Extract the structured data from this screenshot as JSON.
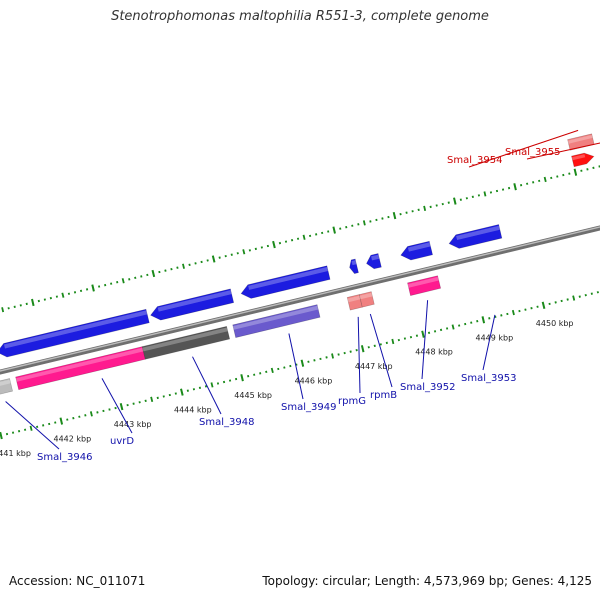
{
  "title": "Stenotrophomonas maltophilia R551-3, complete genome",
  "footer": {
    "accession": "Accession: NC_011071",
    "summary": "Topology: circular; Length: 4,573,969 bp; Genes: 4,125"
  },
  "colors": {
    "forward_cds": "#1c1ce0",
    "reverse_cds": "#ff1a8f",
    "trna_light": "#f08080",
    "trna_forward": "#ff1010",
    "trna_pseudo": "#bbbbbb",
    "dark_gene": "#555555",
    "violet_gene": "#6a5acd",
    "green_gene": "#99ee22",
    "olive_gene": "#556b22",
    "backbone": "#8a8a8a",
    "ticks": "#1a8a1a",
    "label_forward": "#1111aa",
    "label_reverse": "#cc0000"
  },
  "axis": {
    "unit": "kbp",
    "ticks": [
      {
        "kbp": 4441,
        "label": "4441 kbp"
      },
      {
        "kbp": 4442,
        "label": "4442 kbp"
      },
      {
        "kbp": 4443,
        "label": "4443 kbp"
      },
      {
        "kbp": 4444,
        "label": "4444 kbp"
      },
      {
        "kbp": 4445,
        "label": "4445 kbp"
      },
      {
        "kbp": 4446,
        "label": "4446 kbp"
      },
      {
        "kbp": 4447,
        "label": "4447 kbp"
      },
      {
        "kbp": 4448,
        "label": "4448 kbp"
      },
      {
        "kbp": 4449,
        "label": "4449 kbp"
      },
      {
        "kbp": 4450,
        "label": "4450 kbp"
      }
    ]
  },
  "genes": [
    {
      "name": "Smal_3946",
      "show_label": true,
      "strand": "reverse",
      "kind": "pseudo",
      "color": "#bbbbbb"
    },
    {
      "name": "uvrD",
      "show_label": true,
      "strand": "reverse",
      "kind": "cds",
      "color": "#ff1a8f"
    },
    {
      "name": "Smal_3948",
      "show_label": true,
      "strand": "reverse",
      "kind": "cds",
      "color": "#555555"
    },
    {
      "name": "Smal_3949",
      "show_label": true,
      "strand": "reverse",
      "kind": "cds",
      "color": "#6a5acd"
    },
    {
      "name": "rpmG",
      "show_label": true,
      "strand": "reverse",
      "kind": "rna",
      "color": "#f08080"
    },
    {
      "name": "rpmB",
      "show_label": true,
      "strand": "reverse",
      "kind": "rna",
      "color": "#f08080"
    },
    {
      "name": "Smal_3952",
      "show_label": true,
      "strand": "reverse",
      "kind": "cds",
      "color": "#ff1a8f"
    },
    {
      "name": "Smal_3953",
      "show_label": true,
      "strand": "forward",
      "kind": "cds",
      "color": "#1c1ce0"
    },
    {
      "name": "Smal_3954",
      "show_label": true,
      "strand": "forward",
      "kind": "rna",
      "color": "#f08080"
    },
    {
      "name": "Smal_3955",
      "show_label": true,
      "strand": "forward",
      "kind": "rna",
      "color": "#ff1010"
    }
  ]
}
